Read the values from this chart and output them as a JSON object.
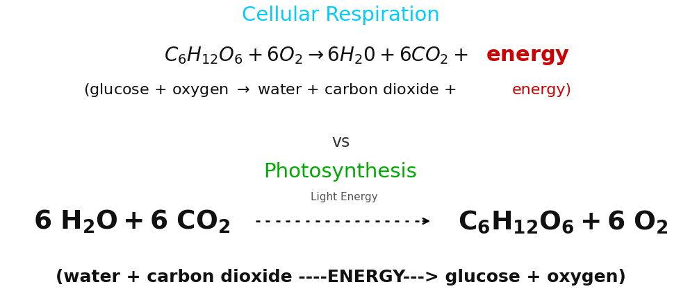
{
  "title_cellular": "Cellular Respiration",
  "title_cellular_color": "#00ccff",
  "title_photo": "Photosynthesis",
  "title_photo_color": "#00aa00",
  "vs_text": "vs",
  "vs_color": "#333333",
  "bg_color": "#ffffff",
  "cr_eq_color": "#111111",
  "cr_energy_color": "#cc0000",
  "photo_eq_color": "#111111",
  "photo_light_color": "#555555",
  "title_fontsize": 21,
  "cr_eq_fontsize": 20,
  "cr_word_fontsize": 16,
  "vs_fontsize": 17,
  "photo_title_fontsize": 21,
  "photo_eq_fontsize": 27,
  "photo_word_fontsize": 18,
  "light_fontsize": 11
}
